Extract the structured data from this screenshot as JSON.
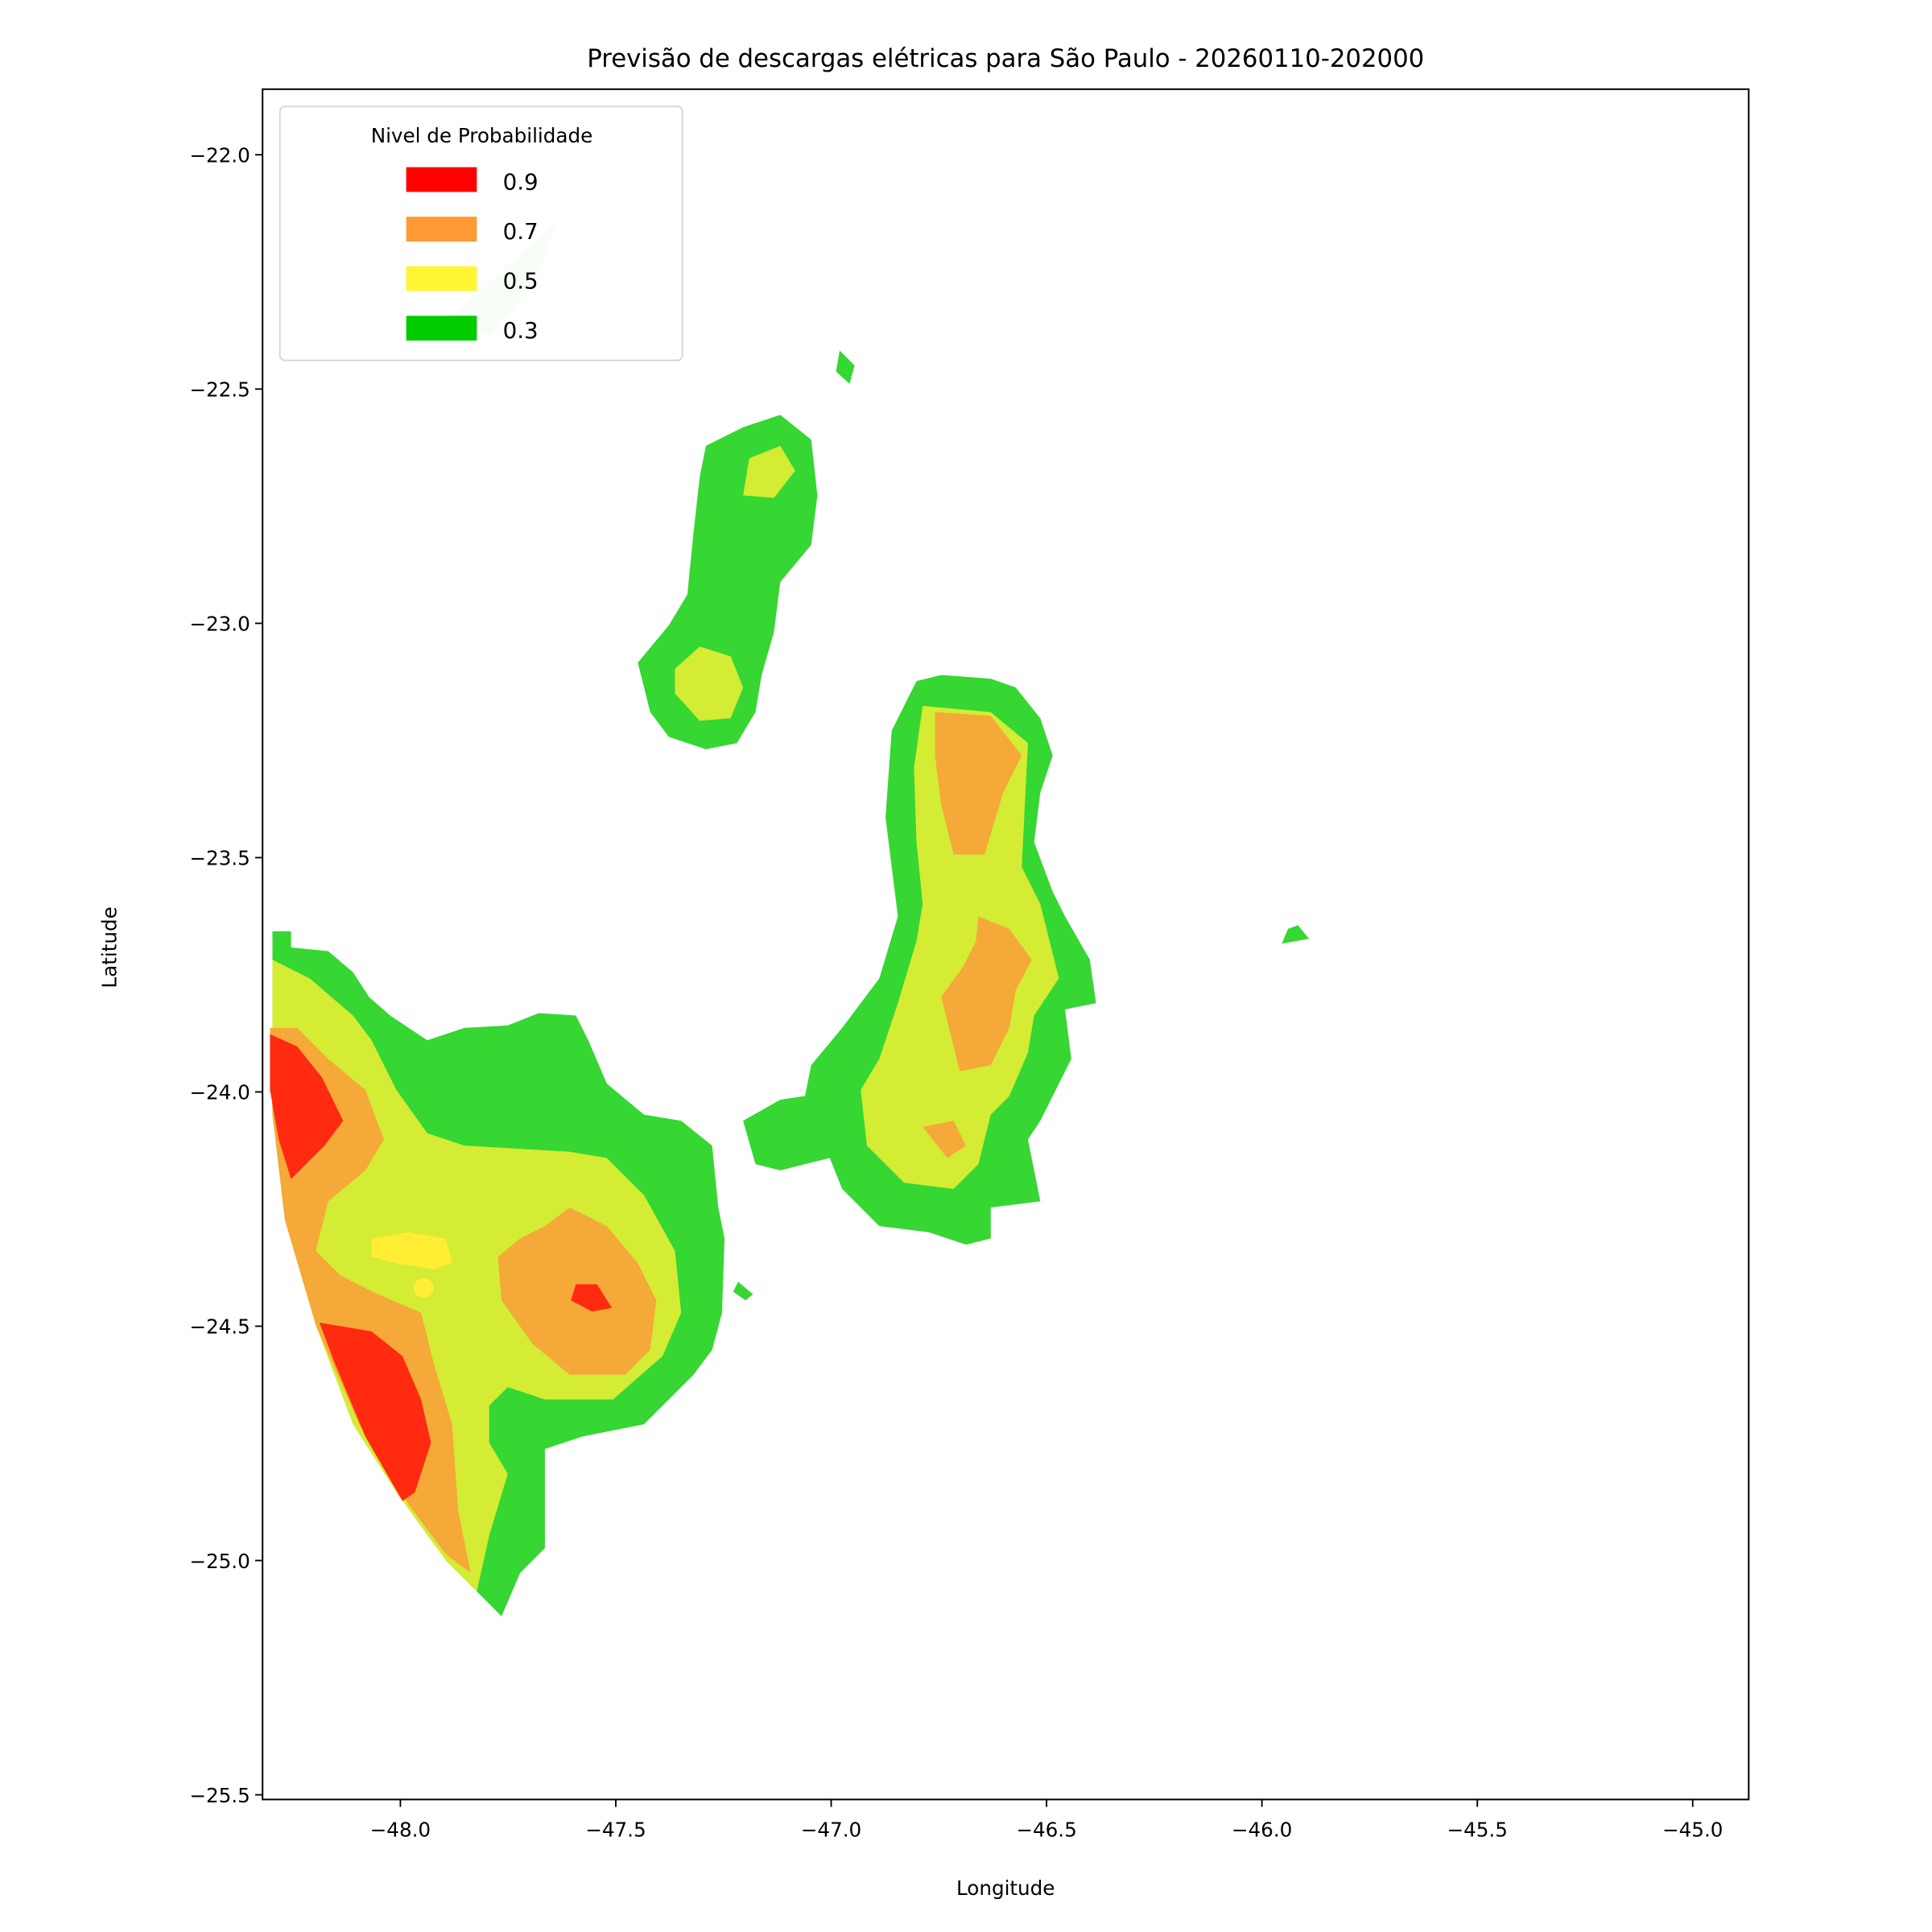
{
  "chart_data": {
    "type": "contour",
    "title": "Previsão de descargas elétricas para São Paulo - 20260110-202000",
    "xlabel": "Longitude",
    "ylabel": "Latitude",
    "xlim": [
      -48.32,
      -44.87
    ],
    "ylim": [
      -25.51,
      -21.86
    ],
    "xticks": [
      -48.0,
      -47.5,
      -47.0,
      -46.5,
      -46.0,
      -45.5,
      -45.0
    ],
    "xtick_labels": [
      "−48.0",
      "−47.5",
      "−47.0",
      "−46.5",
      "−46.0",
      "−45.5",
      "−45.0"
    ],
    "yticks": [
      -22.0,
      -22.5,
      -23.0,
      -23.5,
      -24.0,
      -24.5,
      -25.0,
      -25.5
    ],
    "ytick_labels": [
      "−22.0",
      "−22.5",
      "−23.0",
      "−23.5",
      "−24.0",
      "−24.5",
      "−25.0",
      "−25.5"
    ],
    "grid": false,
    "legend": {
      "title": "Nivel de Probabilidade",
      "placement": "upper-left",
      "entries": [
        {
          "label": "0.9",
          "color": "#ff0000"
        },
        {
          "label": "0.7",
          "color": "#ff9933"
        },
        {
          "label": "0.5",
          "color": "#fff533"
        },
        {
          "label": "0.3",
          "color": "#00cc00"
        }
      ]
    },
    "levels": [
      0.3,
      0.5,
      0.7,
      0.9
    ],
    "fill_colors": {
      "0.3": "#36d633",
      "0.5": "#d4ec34",
      "0.7": "#f4a938",
      "0.9": "#ff2a10",
      "0.5_bright": "#ffee33"
    }
  }
}
